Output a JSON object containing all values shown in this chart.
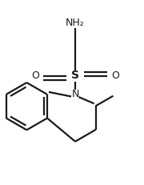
{
  "bg_color": "#ffffff",
  "line_color": "#1a1a1a",
  "line_width": 1.6,
  "font_size_nh2": 9.0,
  "font_size_s": 10.0,
  "font_size_o": 9.0,
  "font_size_n": 9.0,
  "nh2_label": "NH₂",
  "n_label": "N",
  "s_label": "S",
  "o_label": "O"
}
